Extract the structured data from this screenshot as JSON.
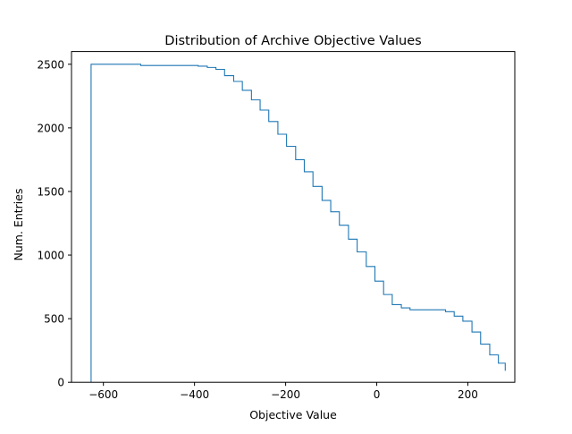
{
  "chart_data": {
    "type": "line",
    "subtype": "cumulative-step-histogram",
    "title": "Distribution of Archive Objective Values",
    "xlabel": "Objective Value",
    "ylabel": "Num. Entries",
    "xlim": [
      -670,
      303
    ],
    "ylim": [
      0,
      2600
    ],
    "xticks": [
      -600,
      -400,
      -200,
      0,
      200
    ],
    "xtick_labels": [
      "−600",
      "−400",
      "−200",
      "0",
      "200"
    ],
    "yticks": [
      0,
      500,
      1000,
      1500,
      2000,
      2500
    ],
    "ytick_labels": [
      "0",
      "500",
      "1000",
      "1500",
      "2000",
      "2500"
    ],
    "grid": false,
    "legend": "none",
    "line_color": "#1f77b4",
    "bin_edges": [
      -627,
      -518,
      -392,
      -372,
      -353,
      -334,
      -314,
      -295,
      -275,
      -256,
      -237,
      -217,
      -198,
      -178,
      -159,
      -140,
      -120,
      -101,
      -82,
      -62,
      -43,
      -23,
      -4,
      15,
      34,
      54,
      73,
      92,
      112,
      131,
      151,
      170,
      189,
      209,
      228,
      248,
      267,
      282
    ],
    "counts": [
      2500,
      2490,
      2485,
      2475,
      2460,
      2410,
      2365,
      2295,
      2220,
      2140,
      2050,
      1950,
      1855,
      1750,
      1655,
      1540,
      1430,
      1340,
      1235,
      1125,
      1025,
      910,
      795,
      690,
      610,
      585,
      570,
      570,
      570,
      570,
      555,
      520,
      480,
      395,
      300,
      215,
      150,
      90
    ]
  }
}
